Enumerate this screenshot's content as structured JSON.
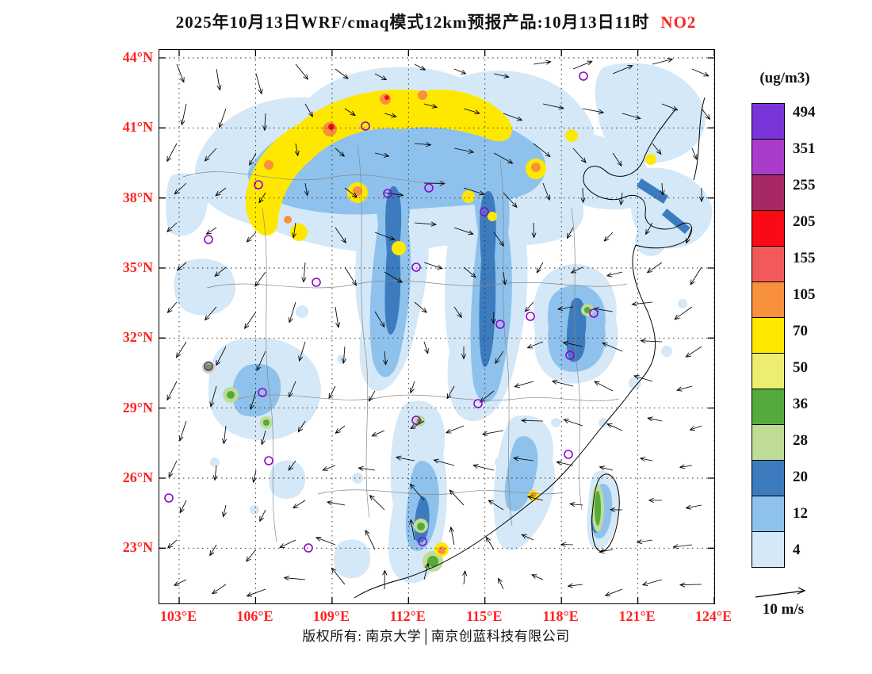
{
  "title": {
    "text": "2025年10月13日WRF/cmaq模式12km预报产品:10月13日11时",
    "species": "NO2"
  },
  "colors": {
    "axis_label": "#FF2222",
    "species_label": "#FF2222",
    "marker": "#9400D3"
  },
  "axes": {
    "lat_labels": [
      "44°N",
      "41°N",
      "38°N",
      "35°N",
      "32°N",
      "29°N",
      "26°N",
      "23°N"
    ],
    "lon_labels": [
      "103°E",
      "106°E",
      "109°E",
      "112°E",
      "115°E",
      "118°E",
      "121°E",
      "124°E"
    ]
  },
  "legend": {
    "unit_label": "(ug/m3)",
    "levels": [
      {
        "value": "494",
        "color": "#7B34D8"
      },
      {
        "value": "351",
        "color": "#AA3CCC"
      },
      {
        "value": "255",
        "color": "#A82864"
      },
      {
        "value": "205",
        "color": "#FA0A14"
      },
      {
        "value": "155",
        "color": "#F25A5A"
      },
      {
        "value": "105",
        "color": "#F8903C"
      },
      {
        "value": "70",
        "color": "#FFE800"
      },
      {
        "value": "50",
        "color": "#ECEE72"
      },
      {
        "value": "36",
        "color": "#55AA3C"
      },
      {
        "value": "28",
        "color": "#BEDC96"
      },
      {
        "value": "20",
        "color": "#3C7CBE"
      },
      {
        "value": "12",
        "color": "#8EC2EC"
      },
      {
        "value": "4",
        "color": "#D4E8F8"
      }
    ]
  },
  "wind_reference": {
    "label": "10 m/s"
  },
  "footer": {
    "copyright": "版权所有: 南京大学│南京创蓝科技有限公司"
  },
  "map": {
    "station_markers": [
      [
        535,
        33
      ],
      [
        260,
        96
      ],
      [
        125,
        170
      ],
      [
        288,
        181
      ],
      [
        340,
        174
      ],
      [
        410,
        204
      ],
      [
        62,
        239
      ],
      [
        324,
        274
      ],
      [
        198,
        293
      ],
      [
        430,
        346
      ],
      [
        468,
        336
      ],
      [
        548,
        332
      ],
      [
        518,
        385
      ],
      [
        62,
        399
      ],
      [
        130,
        432
      ],
      [
        402,
        446
      ],
      [
        324,
        467
      ],
      [
        138,
        518
      ],
      [
        516,
        510
      ],
      [
        12,
        565
      ],
      [
        188,
        628
      ],
      [
        332,
        620
      ]
    ]
  }
}
